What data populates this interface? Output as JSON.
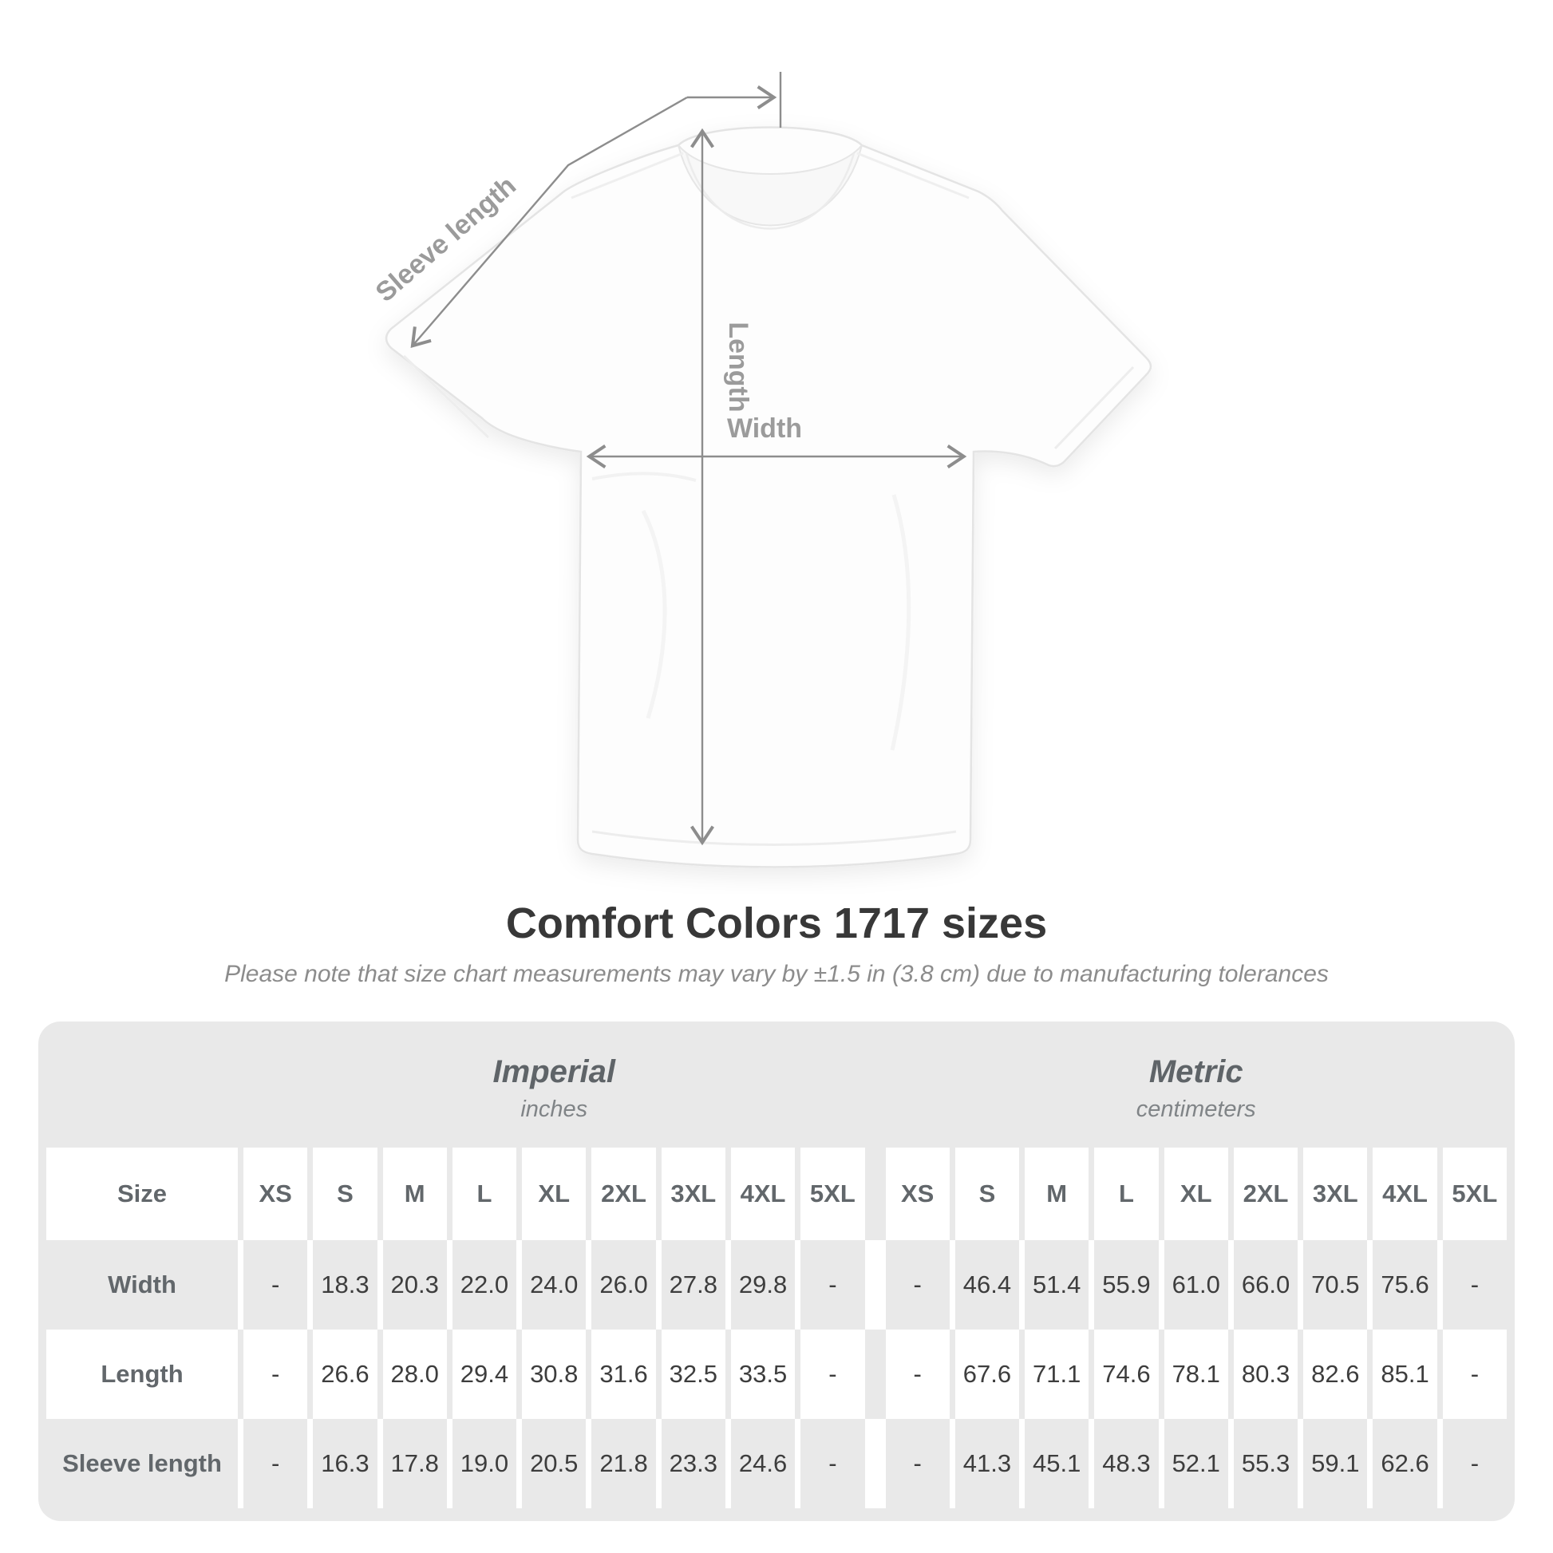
{
  "diagram": {
    "sleeve_label": "Sleeve length",
    "length_label": "Length",
    "width_label": "Width"
  },
  "heading": {
    "title": "Comfort Colors 1717 sizes",
    "subtitle": "Please note that size chart measurements may vary by ±1.5 in (3.8 cm) due to manufacturing tolerances"
  },
  "table": {
    "size_header": "Size",
    "groups": [
      {
        "name": "Imperial",
        "unit": "inches"
      },
      {
        "name": "Metric",
        "unit": "centimeters"
      }
    ],
    "sizes": [
      "XS",
      "S",
      "M",
      "L",
      "XL",
      "2XL",
      "3XL",
      "4XL",
      "5XL"
    ],
    "rows": [
      {
        "label": "Width",
        "imperial": [
          "-",
          "18.3",
          "20.3",
          "22.0",
          "24.0",
          "26.0",
          "27.8",
          "29.8",
          "-"
        ],
        "metric": [
          "-",
          "46.4",
          "51.4",
          "55.9",
          "61.0",
          "66.0",
          "70.5",
          "75.6",
          "-"
        ]
      },
      {
        "label": "Length",
        "imperial": [
          "-",
          "26.6",
          "28.0",
          "29.4",
          "30.8",
          "31.6",
          "32.5",
          "33.5",
          "-"
        ],
        "metric": [
          "-",
          "67.6",
          "71.1",
          "74.6",
          "78.1",
          "80.3",
          "82.6",
          "85.1",
          "-"
        ]
      },
      {
        "label": "Sleeve length",
        "imperial": [
          "-",
          "16.3",
          "17.8",
          "19.0",
          "20.5",
          "21.8",
          "23.3",
          "24.6",
          "-"
        ],
        "metric": [
          "-",
          "41.3",
          "45.1",
          "48.3",
          "52.1",
          "55.3",
          "59.1",
          "62.6",
          "-"
        ]
      }
    ]
  },
  "colors": {
    "table_bg": "#e9e9e9",
    "cell_white": "#ffffff",
    "value_text": "#3d3d3d",
    "label_text": "#62676b",
    "measure_line": "#8d8d8d",
    "measure_label": "#9b9b9b"
  }
}
